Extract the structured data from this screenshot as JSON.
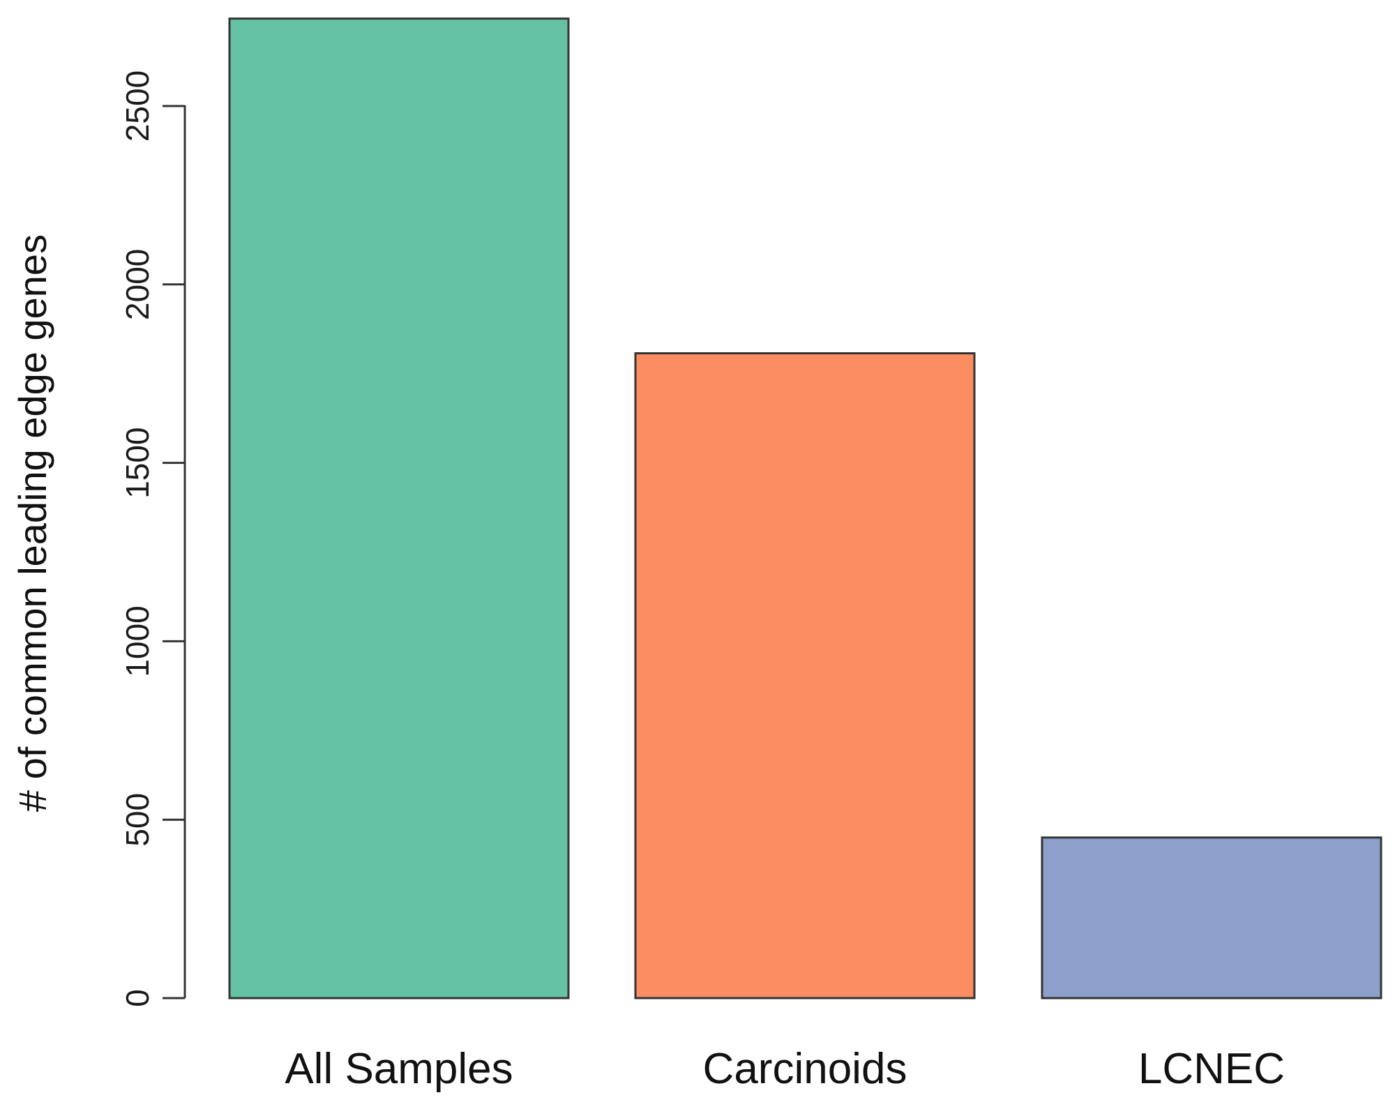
{
  "chart_data": {
    "type": "bar",
    "title": "",
    "xlabel": "",
    "ylabel": "# of common leading edge genes",
    "categories": [
      "All Samples",
      "Carcinoids",
      "LCNEC"
    ],
    "values": [
      2745,
      1807,
      450
    ],
    "colors": [
      "#66c2a5",
      "#fc8d62",
      "#8da0cb"
    ],
    "bar_border_color": "#333333",
    "yticks": [
      0,
      500,
      1000,
      1500,
      2000,
      2500
    ],
    "ylim": [
      0,
      2745
    ],
    "grid": false,
    "legend": "none"
  }
}
